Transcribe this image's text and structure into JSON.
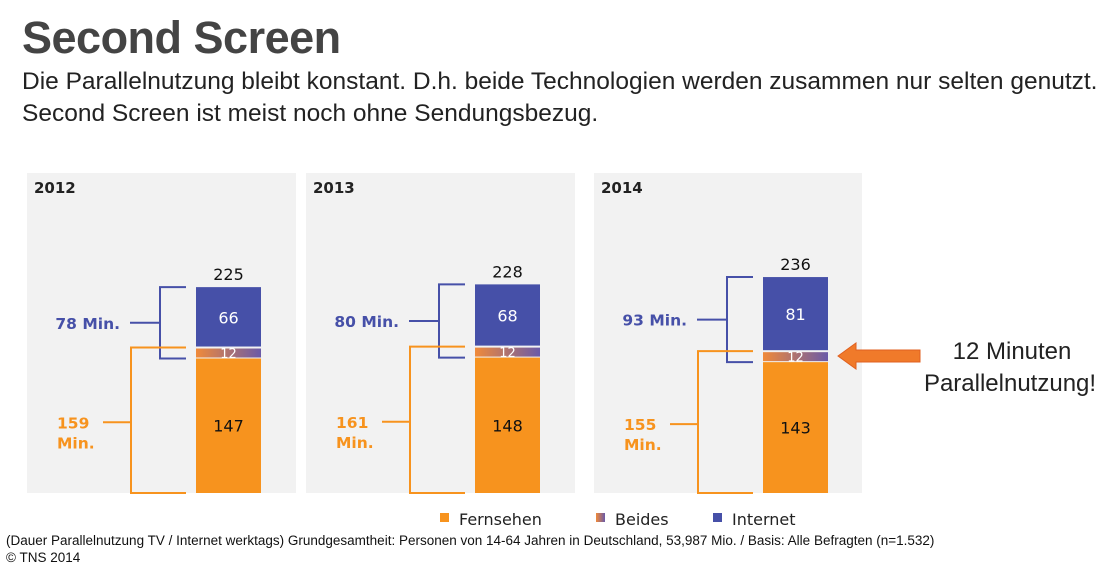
{
  "header": {
    "title": "Second Screen",
    "subtitle": "Die Parallelnutzung bleibt konstant. D.h. beide Technologien werden zusammen nur selten genutzt. Second Screen ist meist noch ohne Sendungsbezug."
  },
  "chart_data": {
    "type": "bar",
    "stacked": true,
    "categories": [
      "2012",
      "2013",
      "2014"
    ],
    "series": [
      {
        "name": "Fernsehen",
        "values": [
          147,
          148,
          143
        ],
        "color": "#f7931e"
      },
      {
        "name": "Beides",
        "values": [
          12,
          12,
          12
        ],
        "color": "#b07060"
      },
      {
        "name": "Internet",
        "values": [
          66,
          68,
          81
        ],
        "color": "#4650a8"
      }
    ],
    "totals": [
      "225",
      "228",
      "236"
    ],
    "beides_labels": [
      "12",
      "12",
      "12"
    ],
    "internet_brackets": [
      "78 Min.",
      "80 Min.",
      "93 Min."
    ],
    "tv_brackets": [
      [
        "159",
        "Min."
      ],
      [
        "161",
        "Min."
      ],
      [
        "155",
        "Min."
      ]
    ],
    "legend": [
      "Fernsehen",
      "Beides",
      "Internet"
    ],
    "legend_position": "bottom"
  },
  "annotation": {
    "line1": "12 Minuten",
    "line2": "Parallelnutzung!"
  },
  "footnote": {
    "line1": "(Dauer Parallelnutzung TV / Internet werktags) Grundgesamtheit: Personen von 14-64 Jahren in Deutschland, 53,987 Mio. / Basis: Alle Befragten (n=1.532)",
    "line2": "© TNS 2014"
  },
  "colors": {
    "internet": "#4650a8",
    "fernsehen": "#f7931e",
    "panel": "#f2f2f2",
    "arrow": "#f07a2a"
  }
}
